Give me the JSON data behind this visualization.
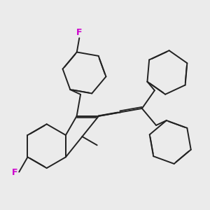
{
  "background_color": "#ebebeb",
  "bond_color": "#222222",
  "fluorine_color": "#cc00cc",
  "bond_width": 1.4,
  "figsize": [
    3.0,
    3.0
  ],
  "dpi": 100
}
